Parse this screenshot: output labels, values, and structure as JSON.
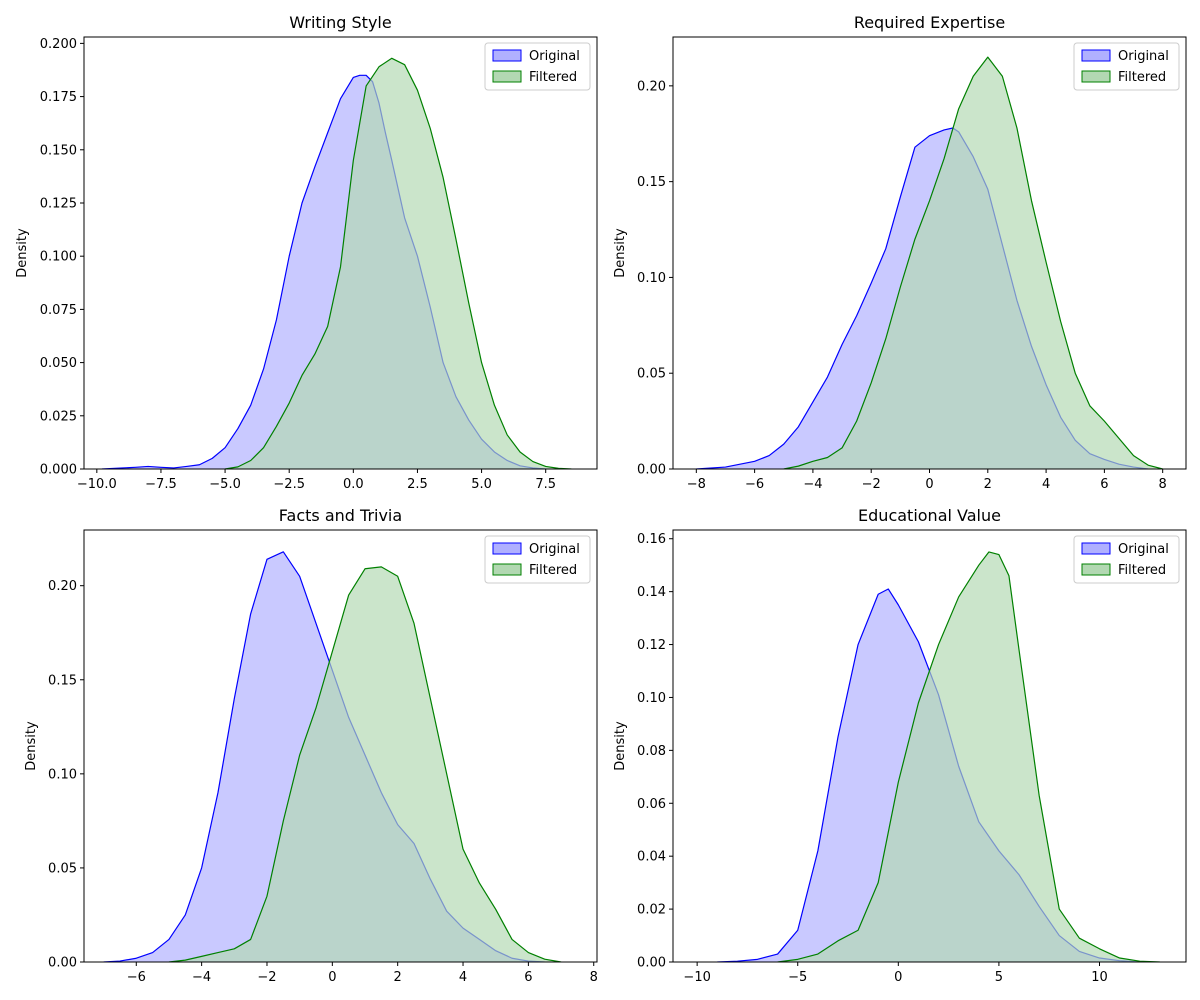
{
  "chart_data": [
    {
      "type": "area",
      "title": "Writing Style",
      "xlabel": "",
      "ylabel": "Density",
      "xlim": [
        -10.5,
        9.5
      ],
      "ylim": [
        0,
        0.203
      ],
      "xticks": [
        -10,
        -7.5,
        -5,
        -2.5,
        0,
        2.5,
        5,
        7.5
      ],
      "xtick_labels": [
        "−10.0",
        "−7.5",
        "−5.0",
        "−2.5",
        "0.0",
        "2.5",
        "5.0",
        "7.5"
      ],
      "yticks": [
        0,
        0.025,
        0.05,
        0.075,
        0.1,
        0.125,
        0.15,
        0.175,
        0.2
      ],
      "ytick_labels": [
        "0.000",
        "0.025",
        "0.050",
        "0.075",
        "0.100",
        "0.125",
        "0.150",
        "0.175",
        "0.200"
      ],
      "legend": {
        "location": "top-right",
        "entries": [
          "Original",
          "Filtered"
        ]
      },
      "series": [
        {
          "name": "Original",
          "color": "#0000ff",
          "x": [
            -9.8,
            -9,
            -8.5,
            -8,
            -7.5,
            -7,
            -6.5,
            -6,
            -5.5,
            -5,
            -4.5,
            -4,
            -3.5,
            -3,
            -2.5,
            -2,
            -1.5,
            -1,
            -0.5,
            0,
            0.25,
            0.5,
            0.75,
            1,
            1.25,
            1.5,
            2,
            2.5,
            3,
            3.5,
            4,
            4.5,
            5,
            5.5,
            6,
            6.5,
            7,
            7.5
          ],
          "y": [
            0,
            0.0005,
            0.0008,
            0.0012,
            0.0008,
            0.0005,
            0.0012,
            0.002,
            0.005,
            0.01,
            0.019,
            0.03,
            0.047,
            0.07,
            0.1,
            0.125,
            0.142,
            0.158,
            0.174,
            0.184,
            0.185,
            0.185,
            0.182,
            0.172,
            0.158,
            0.145,
            0.118,
            0.1,
            0.076,
            0.05,
            0.034,
            0.023,
            0.014,
            0.008,
            0.004,
            0.0015,
            0.0005,
            0
          ]
        },
        {
          "name": "Filtered",
          "color": "#008000",
          "x": [
            -5,
            -4.5,
            -4,
            -3.5,
            -3,
            -2.5,
            -2,
            -1.5,
            -1,
            -0.5,
            0,
            0.5,
            1,
            1.5,
            2,
            2.5,
            3,
            3.5,
            4,
            4.5,
            5,
            5.5,
            6,
            6.5,
            7,
            7.5,
            8,
            8.5
          ],
          "y": [
            0,
            0.001,
            0.004,
            0.01,
            0.02,
            0.031,
            0.044,
            0.054,
            0.067,
            0.095,
            0.145,
            0.18,
            0.189,
            0.193,
            0.19,
            0.178,
            0.16,
            0.137,
            0.108,
            0.078,
            0.05,
            0.03,
            0.016,
            0.008,
            0.0035,
            0.0012,
            0.0003,
            0
          ]
        }
      ]
    },
    {
      "type": "area",
      "title": "Required Expertise",
      "xlabel": "",
      "ylabel": "Density",
      "xlim": [
        -8.8,
        8.8
      ],
      "ylim": [
        0,
        0.2255
      ],
      "xticks": [
        -8,
        -6,
        -4,
        -2,
        0,
        2,
        4,
        6,
        8
      ],
      "xtick_labels": [
        "−8",
        "−6",
        "−4",
        "−2",
        "0",
        "2",
        "4",
        "6",
        "8"
      ],
      "yticks": [
        0,
        0.05,
        0.1,
        0.15,
        0.2
      ],
      "ytick_labels": [
        "0.00",
        "0.05",
        "0.10",
        "0.15",
        "0.20"
      ],
      "legend": {
        "location": "top-right",
        "entries": [
          "Original",
          "Filtered"
        ]
      },
      "series": [
        {
          "name": "Original",
          "color": "#0000ff",
          "x": [
            -8,
            -7,
            -6,
            -5.5,
            -5,
            -4.5,
            -4,
            -3.5,
            -3,
            -2.5,
            -2,
            -1.5,
            -1,
            -0.5,
            0,
            0.5,
            0.8,
            1,
            1.5,
            2,
            2.5,
            3,
            3.5,
            4,
            4.5,
            5,
            5.5,
            6,
            6.5,
            7,
            7.5
          ],
          "y": [
            0,
            0.001,
            0.004,
            0.007,
            0.013,
            0.022,
            0.035,
            0.048,
            0.065,
            0.08,
            0.097,
            0.115,
            0.142,
            0.168,
            0.174,
            0.177,
            0.178,
            0.176,
            0.163,
            0.146,
            0.117,
            0.088,
            0.064,
            0.044,
            0.027,
            0.015,
            0.008,
            0.005,
            0.0025,
            0.001,
            0
          ]
        },
        {
          "name": "Filtered",
          "color": "#008000",
          "x": [
            -5,
            -4.5,
            -4,
            -3.5,
            -3,
            -2.5,
            -2,
            -1.5,
            -1,
            -0.5,
            0,
            0.5,
            1,
            1.5,
            2,
            2.5,
            3,
            3.5,
            4,
            4.5,
            5,
            5.5,
            6,
            6.5,
            7,
            7.5,
            8
          ],
          "y": [
            0,
            0.0015,
            0.004,
            0.006,
            0.011,
            0.025,
            0.045,
            0.068,
            0.095,
            0.12,
            0.14,
            0.162,
            0.188,
            0.205,
            0.215,
            0.205,
            0.178,
            0.14,
            0.108,
            0.077,
            0.05,
            0.033,
            0.025,
            0.016,
            0.007,
            0.002,
            0
          ]
        }
      ]
    },
    {
      "type": "area",
      "title": "Facts and Trivia",
      "xlabel": "",
      "ylabel": "Density",
      "xlim": [
        -7.6,
        8.1
      ],
      "ylim": [
        0,
        0.2296
      ],
      "xticks": [
        -6,
        -4,
        -2,
        0,
        2,
        4,
        6,
        8
      ],
      "xtick_labels": [
        "−6",
        "−4",
        "−2",
        "0",
        "2",
        "4",
        "6",
        "8"
      ],
      "yticks": [
        0,
        0.05,
        0.1,
        0.15,
        0.2
      ],
      "ytick_labels": [
        "0.00",
        "0.05",
        "0.10",
        "0.15",
        "0.20"
      ],
      "legend": {
        "location": "top-right",
        "entries": [
          "Original",
          "Filtered"
        ]
      },
      "series": [
        {
          "name": "Original",
          "color": "#0000ff",
          "x": [
            -7,
            -6.5,
            -6,
            -5.5,
            -5,
            -4.5,
            -4,
            -3.5,
            -3,
            -2.5,
            -2,
            -1.5,
            -1,
            -0.5,
            0,
            0.5,
            1,
            1.5,
            2,
            2.5,
            3,
            3.5,
            4,
            4.5,
            5,
            5.5,
            6,
            6.5
          ],
          "y": [
            0,
            0.0005,
            0.002,
            0.005,
            0.012,
            0.025,
            0.05,
            0.09,
            0.14,
            0.185,
            0.214,
            0.218,
            0.205,
            0.18,
            0.155,
            0.13,
            0.11,
            0.09,
            0.073,
            0.063,
            0.044,
            0.027,
            0.018,
            0.012,
            0.006,
            0.002,
            0.0005,
            0
          ]
        },
        {
          "name": "Filtered",
          "color": "#008000",
          "x": [
            -5,
            -4.5,
            -4,
            -3.5,
            -3,
            -2.5,
            -2,
            -1.5,
            -1,
            -0.5,
            0,
            0.5,
            1,
            1.5,
            2,
            2.5,
            3,
            3.5,
            4,
            4.5,
            5,
            5.5,
            6,
            6.5,
            7
          ],
          "y": [
            0,
            0.001,
            0.003,
            0.005,
            0.007,
            0.012,
            0.035,
            0.075,
            0.11,
            0.135,
            0.165,
            0.195,
            0.209,
            0.21,
            0.205,
            0.18,
            0.14,
            0.1,
            0.06,
            0.042,
            0.028,
            0.012,
            0.005,
            0.0015,
            0
          ]
        }
      ]
    },
    {
      "type": "area",
      "title": "Educational Value",
      "xlabel": "",
      "ylabel": "Density",
      "xlim": [
        -11.2,
        14.3
      ],
      "ylim": [
        0,
        0.1633
      ],
      "xticks": [
        -10,
        -5,
        0,
        5,
        10
      ],
      "xtick_labels": [
        "−10",
        "−5",
        "0",
        "5",
        "10"
      ],
      "yticks": [
        0,
        0.02,
        0.04,
        0.06,
        0.08,
        0.1,
        0.12,
        0.14,
        0.16
      ],
      "ytick_labels": [
        "0.00",
        "0.02",
        "0.04",
        "0.06",
        "0.08",
        "0.10",
        "0.12",
        "0.14",
        "0.16"
      ],
      "legend": {
        "location": "top-right",
        "entries": [
          "Original",
          "Filtered"
        ]
      },
      "series": [
        {
          "name": "Original",
          "color": "#0000ff",
          "x": [
            -9,
            -8,
            -7,
            -6,
            -5,
            -4,
            -3,
            -2,
            -1,
            -0.5,
            0,
            1,
            2,
            3,
            4,
            5,
            6,
            7,
            8,
            9,
            10,
            11,
            12
          ],
          "y": [
            0,
            0.0003,
            0.001,
            0.003,
            0.012,
            0.042,
            0.085,
            0.12,
            0.139,
            0.141,
            0.135,
            0.121,
            0.101,
            0.074,
            0.053,
            0.042,
            0.033,
            0.021,
            0.01,
            0.004,
            0.0015,
            0.0005,
            0
          ]
        },
        {
          "name": "Filtered",
          "color": "#008000",
          "x": [
            -6,
            -5,
            -4,
            -3,
            -2,
            -1,
            0,
            1,
            2,
            3,
            4,
            4.5,
            5,
            5.5,
            6,
            7,
            8,
            9,
            10,
            11,
            12,
            13
          ],
          "y": [
            0,
            0.001,
            0.003,
            0.008,
            0.012,
            0.03,
            0.068,
            0.098,
            0.12,
            0.138,
            0.15,
            0.155,
            0.154,
            0.146,
            0.118,
            0.063,
            0.02,
            0.009,
            0.005,
            0.0015,
            0.0003,
            0
          ]
        }
      ]
    }
  ]
}
